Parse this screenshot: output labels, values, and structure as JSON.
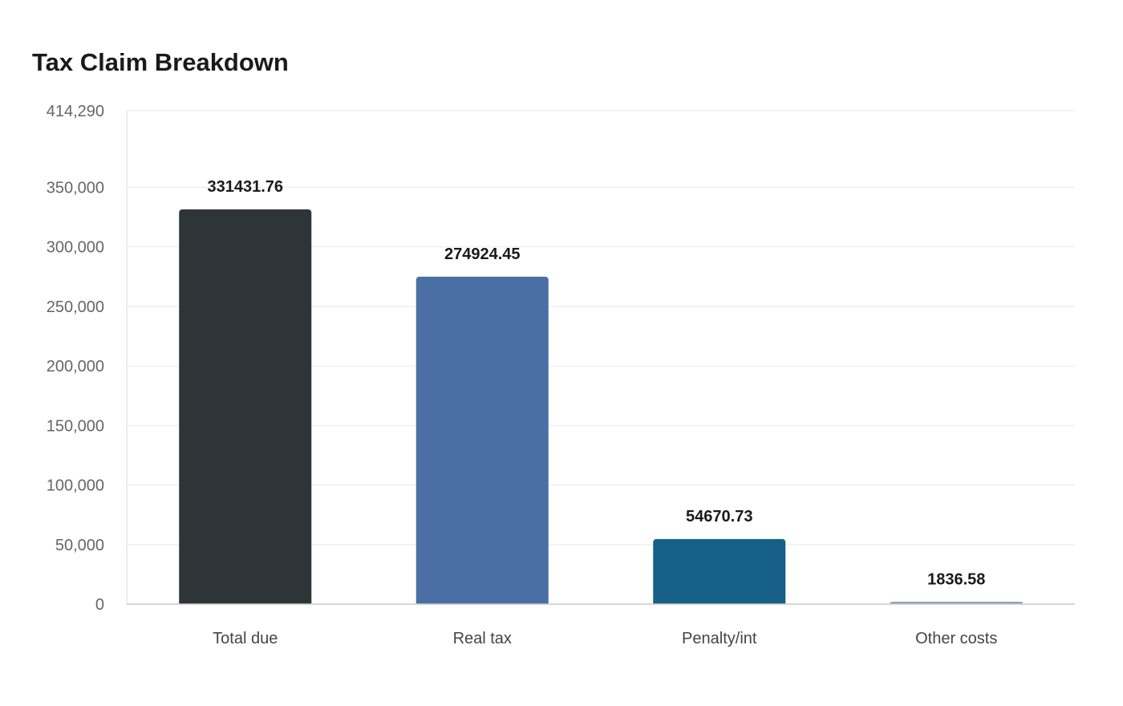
{
  "chart_data": {
    "type": "bar",
    "title": "Tax Claim Breakdown",
    "xlabel": "",
    "ylabel": "",
    "categories": [
      "Total due",
      "Real tax",
      "Penalty/int",
      "Other costs"
    ],
    "values": [
      331431.76,
      274924.45,
      54670.73,
      1836.58
    ],
    "data_labels": [
      "331431.76",
      "274924.45",
      "54670.73",
      "1836.58"
    ],
    "bar_colors": [
      "#2e3538",
      "#4a6fa5",
      "#166088",
      "#8a9bb8"
    ],
    "ylim": [
      0,
      414290
    ],
    "yticks": [
      0,
      50000,
      100000,
      150000,
      200000,
      250000,
      300000,
      350000,
      414290
    ],
    "ytick_labels": [
      "0",
      "50,000",
      "100,000",
      "150,000",
      "200,000",
      "250,000",
      "300,000",
      "350,000",
      "414,290"
    ],
    "grid": true,
    "legend": "none"
  }
}
